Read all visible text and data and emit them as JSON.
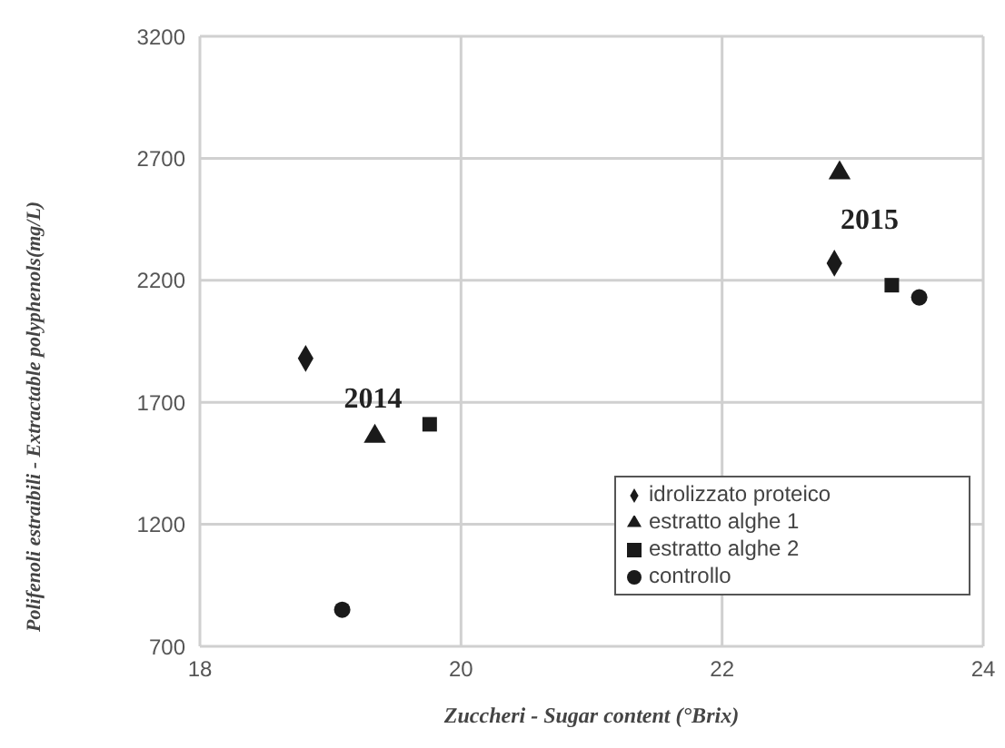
{
  "chart_data": {
    "type": "scatter",
    "xlabel": "Zuccheri - Sugar content (°Brix)",
    "ylabel": "Polifenoli estraibili - Extractable polyphenols(mg/L)",
    "xlim": [
      18,
      24
    ],
    "xticks": [
      18,
      20,
      22,
      24
    ],
    "ylim": [
      700,
      3200
    ],
    "yticks": [
      700,
      1200,
      1700,
      2200,
      2700,
      3200
    ],
    "grid": true,
    "legend": "bottom right",
    "series": [
      {
        "name": "idrolizzato proteico",
        "color": "#1a1a1a",
        "marker": "diamond",
        "x": [
          18.81,
          22.86
        ],
        "values": [
          1880,
          2270
        ]
      },
      {
        "name": "estratto alghe 1",
        "color": "#1a1a1a",
        "marker": "triangle",
        "x": [
          19.34,
          22.9
        ],
        "values": [
          1560,
          2640
        ]
      },
      {
        "name": "estratto alghe 2",
        "color": "#1a1a1a",
        "marker": "square",
        "x": [
          19.76,
          23.3
        ],
        "values": [
          1610,
          2180
        ]
      },
      {
        "name": "controllo",
        "color": "#1a1a1a",
        "marker": "circle",
        "x": [
          19.09,
          23.51
        ],
        "values": [
          850,
          2130
        ]
      }
    ],
    "annotations": [
      "2014",
      "2015"
    ]
  }
}
